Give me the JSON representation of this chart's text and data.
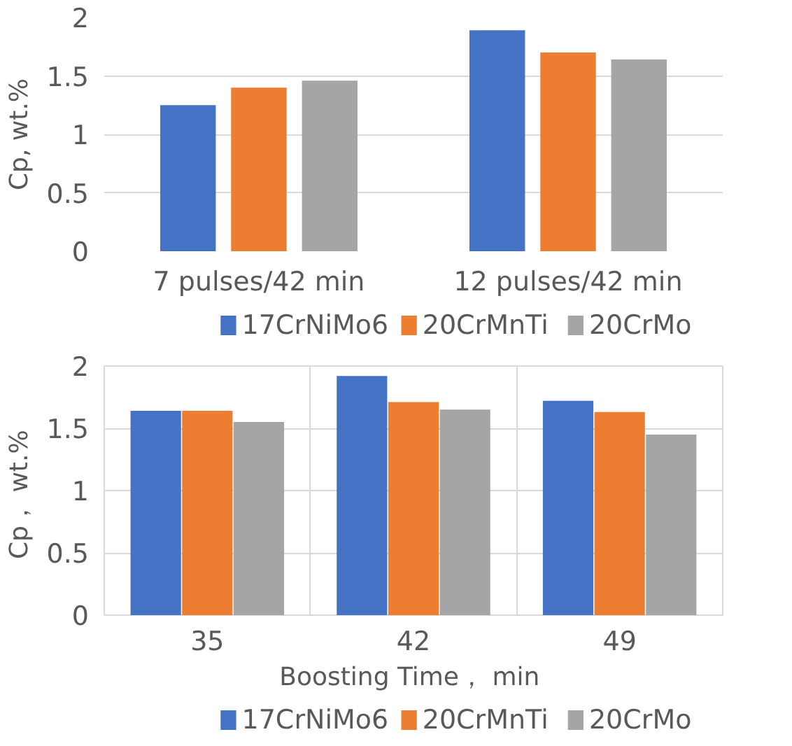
{
  "chart_data": [
    {
      "type": "bar",
      "ylabel": "Cp, wt.%",
      "categories": [
        "7 pulses/42 min",
        "12 pulses/42 min"
      ],
      "ylim": [
        0,
        2
      ],
      "yticks": [
        0,
        0.5,
        1,
        1.5,
        2
      ],
      "grid": "y",
      "legend": "bottom",
      "series": [
        {
          "name": "17CrNiMo6",
          "color": "#4472c4",
          "values": [
            1.25,
            1.89
          ]
        },
        {
          "name": "20CrMnTi",
          "color": "#ed7d31",
          "values": [
            1.4,
            1.7
          ]
        },
        {
          "name": "20CrMo",
          "color": "#a5a5a5",
          "values": [
            1.46,
            1.64
          ]
        }
      ]
    },
    {
      "type": "bar",
      "ylabel": "Cp，  wt.%",
      "xlabel": "Boosting Time，  min",
      "categories": [
        "35",
        "42",
        "49"
      ],
      "ylim": [
        0,
        2
      ],
      "yticks": [
        0,
        0.5,
        1,
        1.5,
        2
      ],
      "grid": true,
      "legend": "bottom",
      "series": [
        {
          "name": "17CrNiMo6",
          "color": "#4472c4",
          "values": [
            1.64,
            1.92,
            1.72
          ]
        },
        {
          "name": "20CrMnTi",
          "color": "#ed7d31",
          "values": [
            1.64,
            1.71,
            1.63
          ]
        },
        {
          "name": "20CrMo",
          "color": "#a5a5a5",
          "values": [
            1.55,
            1.65,
            1.45
          ]
        }
      ]
    }
  ]
}
